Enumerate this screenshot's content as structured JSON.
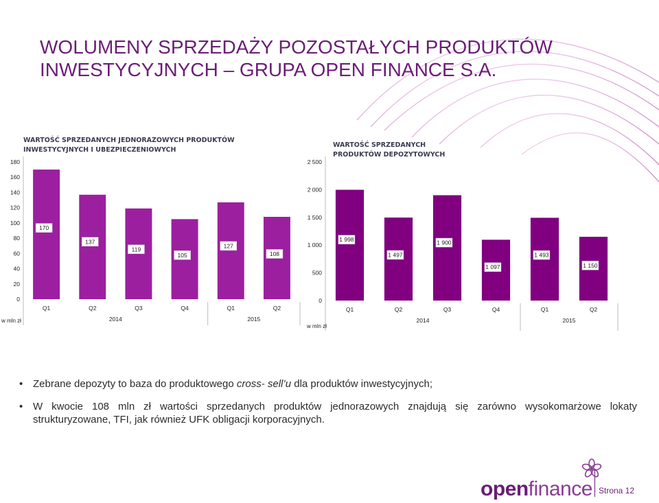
{
  "title": "WOLUMENY SPRZEDAŻY POZOSTAŁYCH PRODUKTÓW INWESTYCYJNYCH – GRUPA OPEN FINANCE S.A.",
  "colors": {
    "accent": "#6b1d76",
    "bar1": "#9c1fa0",
    "bar2": "#80007f"
  },
  "chart_data": [
    {
      "type": "bar",
      "title": "WARTOŚĆ SPRZEDANYCH JEDNORAZOWYCH PRODUKTÓW INWESTYCYJNYCH I UBEZPIECZENIOWYCH",
      "categories": [
        "Q1",
        "Q2",
        "Q3",
        "Q4",
        "Q1",
        "Q2"
      ],
      "groups": [
        {
          "label": "2014",
          "from": 0,
          "to": 3
        },
        {
          "label": "2015",
          "from": 4,
          "to": 5
        }
      ],
      "values": [
        170,
        137,
        119,
        105,
        127,
        108
      ],
      "value_labels": [
        "170",
        "137",
        "119",
        "105",
        "127",
        "108"
      ],
      "yticks": [
        "0",
        "20",
        "40",
        "60",
        "80",
        "100",
        "120",
        "140",
        "160",
        "180"
      ],
      "ylim": [
        0,
        180
      ],
      "unit_label": "w mln zł",
      "legend": "none",
      "grid": false
    },
    {
      "type": "bar",
      "title": "WARTOŚĆ SPRZEDANYCH PRODUKTÓW DEPOZYTOWYCH",
      "categories": [
        "Q1",
        "Q2",
        "Q3",
        "Q4",
        "Q1",
        "Q2"
      ],
      "groups": [
        {
          "label": "2014",
          "from": 0,
          "to": 3
        },
        {
          "label": "2015",
          "from": 4,
          "to": 5
        }
      ],
      "values": [
        1998,
        1497,
        1900,
        1097,
        1493,
        1150
      ],
      "value_labels": [
        "1 998",
        "1 497",
        "1 900",
        "1 097",
        "1 493",
        "1 150"
      ],
      "yticks": [
        "0",
        "500",
        "1 000",
        "1 500",
        "2 000",
        "2 500"
      ],
      "ylim": [
        0,
        2500
      ],
      "unit_label": "w mln zł",
      "legend": "none",
      "grid": false
    }
  ],
  "bullets": [
    {
      "pre": "Zebrane depozyty to baza do produktowego ",
      "em": "cross- sell’u",
      "post": " dla produktów inwestycyjnych;"
    },
    {
      "pre": "W kwocie 108 mln zł wartości sprzedanych produktów jednorazowych znajdują się zarówno wysokomarżowe lokaty strukturyzowane, TFI, jak również UFK obligacji korporacyjnych.",
      "em": "",
      "post": ""
    }
  ],
  "logo": {
    "open": "open",
    "finance": "finance"
  },
  "page_label": "Strona 12"
}
